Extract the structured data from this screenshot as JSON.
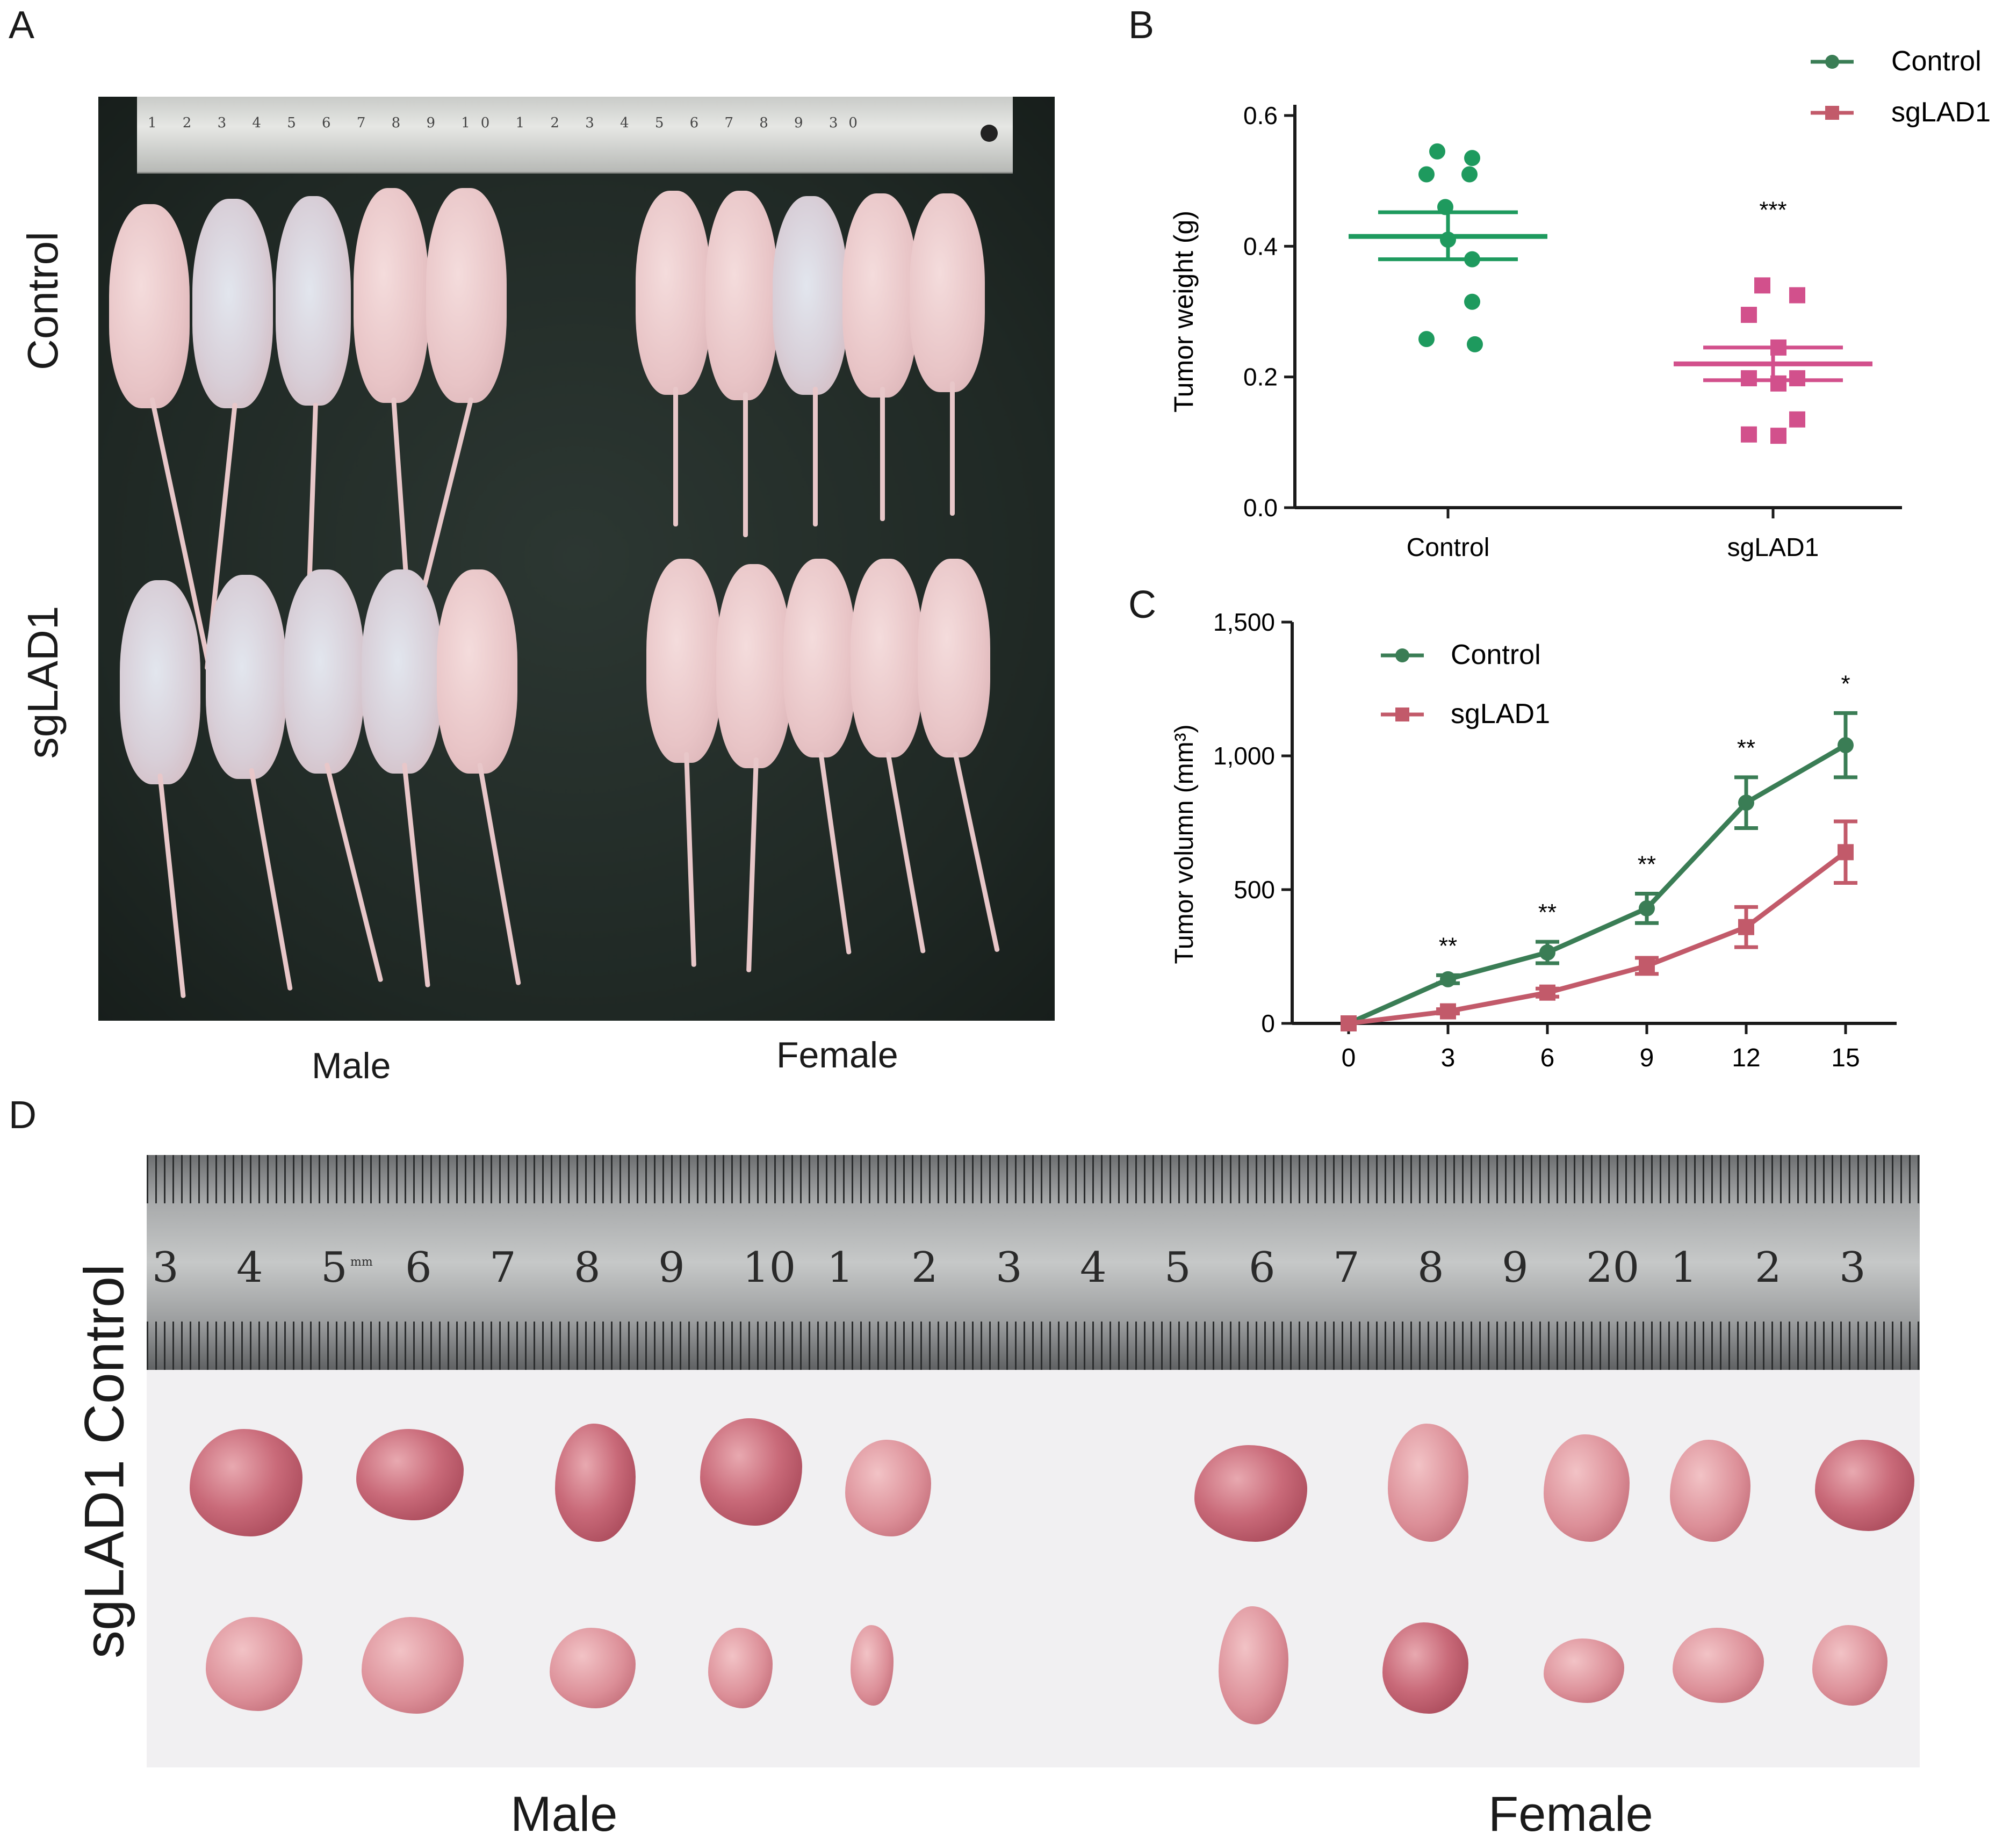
{
  "panel_letters": {
    "a": "A",
    "b": "B",
    "c": "C",
    "d": "D"
  },
  "panel_a": {
    "row_labels": [
      "Control",
      "sgLAD1"
    ],
    "column_labels": [
      "Male",
      "Female"
    ],
    "ruler_digits": "1 2 3 4 5 6 7 8 9 10 1 2 3 4 5 6 7 8 9 30"
  },
  "panel_d": {
    "row_labels_combined": "sgLAD1 Control",
    "column_labels": [
      "Male",
      "Female"
    ],
    "ruler_numbers": [
      "3",
      "4",
      "5",
      "6",
      "7",
      "8",
      "9",
      "10",
      "1",
      "2",
      "3",
      "4",
      "5",
      "6",
      "7",
      "8",
      "9",
      "20",
      "1",
      "2",
      "3"
    ],
    "ruler_mm": "mm"
  },
  "colors": {
    "control": "#1e9a5e",
    "control_line": "#3a7d55",
    "sglad1": "#d2508c",
    "sglad1_line": "#c25a6a",
    "axis": "#1a1a1a"
  },
  "chart_data": [
    {
      "id": "B",
      "type": "scatter",
      "title": "",
      "xlabel": "",
      "ylabel": "Tumor weight (g)",
      "categories": [
        "Control",
        "sgLAD1"
      ],
      "ylim": [
        0,
        0.6
      ],
      "yticks": [
        "0.0",
        "0.2",
        "0.4",
        "0.6"
      ],
      "ytick_values": [
        0,
        0.2,
        0.4,
        0.6
      ],
      "legend": [
        "Control",
        "sgLAD1"
      ],
      "legend_position": "top-right",
      "series": [
        {
          "name": "Control",
          "marker": "circle",
          "mean": 0.415,
          "sem_low": 0.38,
          "sem_high": 0.452,
          "points": [
            0.545,
            0.535,
            0.51,
            0.51,
            0.46,
            0.41,
            0.38,
            0.315,
            0.258,
            0.25
          ]
        },
        {
          "name": "sgLAD1",
          "marker": "square",
          "mean": 0.22,
          "sem_low": 0.195,
          "sem_high": 0.245,
          "points": [
            0.34,
            0.325,
            0.295,
            0.245,
            0.198,
            0.198,
            0.19,
            0.135,
            0.112,
            0.11
          ]
        }
      ],
      "annotations": [
        {
          "category": "sgLAD1",
          "text": "***",
          "y": 0.46
        }
      ]
    },
    {
      "id": "C",
      "type": "line",
      "title": "",
      "xlabel": "",
      "ylabel": "Tumor volumn (mm³)",
      "x": [
        0,
        3,
        6,
        9,
        12,
        15
      ],
      "xticks": [
        "0",
        "3",
        "6",
        "9",
        "12",
        "15"
      ],
      "ylim": [
        0,
        1500
      ],
      "yticks": [
        "0",
        "500",
        "1,000",
        "1,500"
      ],
      "ytick_values": [
        0,
        500,
        1000,
        1500
      ],
      "legend": [
        "Control",
        "sgLAD1"
      ],
      "legend_position": "top-left",
      "series": [
        {
          "name": "Control",
          "marker": "circle",
          "values": [
            0,
            165,
            265,
            430,
            825,
            1040
          ],
          "err": [
            0,
            15,
            40,
            55,
            95,
            120
          ]
        },
        {
          "name": "sgLAD1",
          "marker": "square",
          "values": [
            0,
            45,
            115,
            215,
            360,
            640
          ],
          "err": [
            0,
            8,
            15,
            30,
            75,
            115
          ]
        }
      ],
      "annotations": [
        {
          "x": 3,
          "text": "**"
        },
        {
          "x": 6,
          "text": "**"
        },
        {
          "x": 9,
          "text": "**"
        },
        {
          "x": 12,
          "text": "**"
        },
        {
          "x": 15,
          "text": "*"
        }
      ]
    }
  ]
}
